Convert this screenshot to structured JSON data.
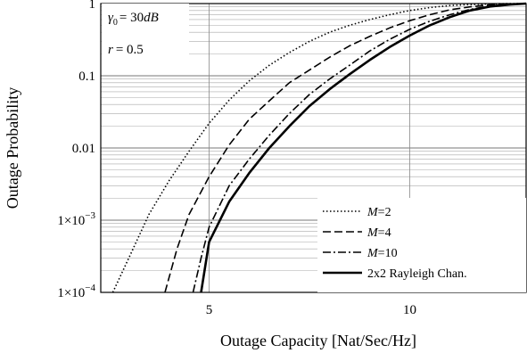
{
  "chart_data": {
    "type": "line",
    "title": "",
    "xlabel": "Outage Capacity [Nat/Sec/Hz]",
    "ylabel": "Outage Probability",
    "xlim": [
      2.3,
      12.9
    ],
    "ylim": [
      0.0001,
      1
    ],
    "yscale": "log",
    "grid": true,
    "legend_position": "bottom-right",
    "x_ticks": [
      {
        "value": 5,
        "label": "5"
      },
      {
        "value": 10,
        "label": "10"
      }
    ],
    "y_ticks": [
      {
        "value": 1,
        "base": "1",
        "exp": ""
      },
      {
        "value": 0.1,
        "base": "0.1",
        "exp": ""
      },
      {
        "value": 0.01,
        "base": "0.01",
        "exp": ""
      },
      {
        "value": 0.001,
        "base": "1×10",
        "exp": "−3"
      },
      {
        "value": 0.0001,
        "base": "1×10",
        "exp": "−4"
      }
    ],
    "annotations": {
      "gamma_symbol": "γ",
      "gamma_sub": "0",
      "gamma_eq": "= 30",
      "gamma_unit": "dB",
      "r_symbol": "r",
      "r_eq": "= 0.5"
    },
    "series": [
      {
        "label_var": "M",
        "label_rest": "=2",
        "style": "dotted",
        "x": [
          2.6,
          3.0,
          3.5,
          4.0,
          4.5,
          5.0,
          5.5,
          6.0,
          6.5,
          7.0,
          7.5,
          8.0,
          8.5,
          9.0,
          9.5,
          10.0,
          10.5,
          11.0,
          11.5,
          12.0,
          12.5,
          12.9
        ],
        "y": [
          0.0001,
          0.0003,
          0.0012,
          0.0035,
          0.009,
          0.022,
          0.046,
          0.085,
          0.14,
          0.21,
          0.3,
          0.4,
          0.5,
          0.6,
          0.7,
          0.8,
          0.88,
          0.94,
          0.97,
          0.99,
          1.0,
          1.0
        ]
      },
      {
        "label_var": "M",
        "label_rest": "=4",
        "style": "dashed",
        "x": [
          3.9,
          4.2,
          4.5,
          5.0,
          5.5,
          6.0,
          6.5,
          7.0,
          7.5,
          8.0,
          8.5,
          9.0,
          9.5,
          10.0,
          10.5,
          11.0,
          11.5,
          12.0,
          12.5,
          12.9
        ],
        "y": [
          0.0001,
          0.0004,
          0.0012,
          0.004,
          0.011,
          0.025,
          0.045,
          0.08,
          0.12,
          0.18,
          0.26,
          0.35,
          0.46,
          0.58,
          0.7,
          0.82,
          0.9,
          0.96,
          0.99,
          1.0
        ]
      },
      {
        "label_var": "M",
        "label_rest": "=10",
        "style": "dashdot",
        "x": [
          4.6,
          4.8,
          5.0,
          5.5,
          6.0,
          6.5,
          7.0,
          7.5,
          8.0,
          8.5,
          9.0,
          9.5,
          10.0,
          10.5,
          11.0,
          11.5,
          12.0,
          12.5,
          12.9
        ],
        "y": [
          0.0001,
          0.0003,
          0.0008,
          0.003,
          0.007,
          0.015,
          0.03,
          0.055,
          0.09,
          0.14,
          0.22,
          0.32,
          0.44,
          0.57,
          0.7,
          0.83,
          0.93,
          0.98,
          1.0
        ]
      },
      {
        "label_var": "",
        "label_rest": "2x2 Rayleigh Chan.",
        "style": "solid",
        "x": [
          4.8,
          5.0,
          5.5,
          6.0,
          6.5,
          7.0,
          7.5,
          8.0,
          8.5,
          9.0,
          9.5,
          10.0,
          10.5,
          11.0,
          11.5,
          12.0,
          12.5,
          12.9
        ],
        "y": [
          0.0001,
          0.0005,
          0.0018,
          0.0045,
          0.01,
          0.02,
          0.038,
          0.065,
          0.105,
          0.165,
          0.25,
          0.36,
          0.5,
          0.65,
          0.8,
          0.91,
          0.97,
          1.0
        ]
      }
    ]
  }
}
